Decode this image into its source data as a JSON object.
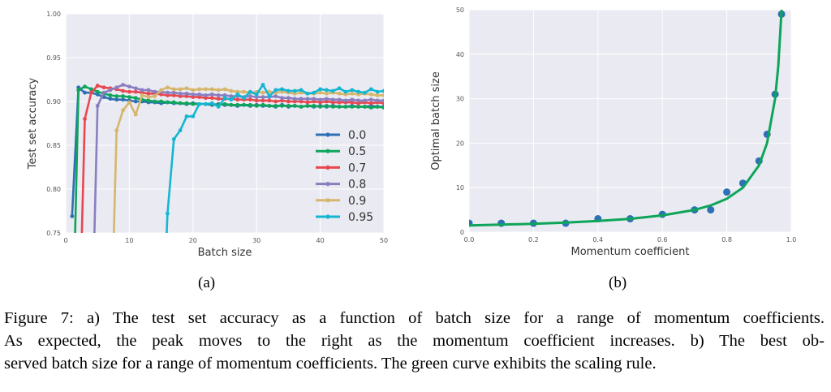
{
  "background_color": "#eaeaf2",
  "chart_data": [
    {
      "type": "line",
      "panel_label": "(a)",
      "xlabel": "Batch size",
      "ylabel": "Test set accuracy",
      "xlim": [
        0,
        50
      ],
      "ylim": [
        0.75,
        1.0
      ],
      "xticks": [
        "0",
        "10",
        "20",
        "30",
        "40",
        "50"
      ],
      "yticks": [
        "0.75",
        "0.80",
        "0.85",
        "0.90",
        "0.95",
        "1.00"
      ],
      "grid": true,
      "legend_position": "bottom-right",
      "x": [
        1,
        2,
        3,
        4,
        5,
        6,
        7,
        8,
        9,
        10,
        11,
        12,
        13,
        14,
        15,
        16,
        17,
        18,
        19,
        20,
        21,
        22,
        23,
        24,
        25,
        26,
        27,
        28,
        29,
        30,
        31,
        32,
        33,
        34,
        35,
        36,
        37,
        38,
        39,
        40,
        41,
        42,
        43,
        44,
        45,
        46,
        47,
        48,
        49,
        50
      ],
      "series": [
        {
          "name": "0.0",
          "color": "#2e6fb5",
          "values": [
            0.769,
            0.916,
            0.91,
            0.91,
            0.908,
            0.905,
            0.903,
            0.902,
            0.902,
            0.901,
            0.9,
            0.9,
            0.899,
            0.899,
            0.898,
            0.899,
            0.898,
            0.898,
            0.897,
            0.898,
            0.897,
            0.897,
            0.896,
            0.897,
            0.896,
            0.896,
            0.895,
            0.896,
            0.895,
            0.896,
            0.895,
            0.895,
            0.894,
            0.896,
            0.894,
            0.895,
            0.894,
            0.895,
            0.894,
            0.895,
            0.894,
            0.895,
            0.894,
            0.894,
            0.895,
            0.894,
            0.894,
            0.895,
            0.894,
            0.894
          ]
        },
        {
          "name": "0.5",
          "color": "#0ea55a",
          "values": [
            0.6,
            0.913,
            0.917,
            0.914,
            0.911,
            0.909,
            0.907,
            0.906,
            0.906,
            0.905,
            0.904,
            0.902,
            0.901,
            0.9,
            0.9,
            0.899,
            0.899,
            0.898,
            0.898,
            0.897,
            0.897,
            0.897,
            0.897,
            0.896,
            0.897,
            0.896,
            0.896,
            0.896,
            0.896,
            0.895,
            0.896,
            0.895,
            0.895,
            0.895,
            0.895,
            0.895,
            0.894,
            0.895,
            0.895,
            0.894,
            0.895,
            0.894,
            0.894,
            0.894,
            0.894,
            0.894,
            0.894,
            0.893,
            0.894,
            0.893
          ]
        },
        {
          "name": "0.7",
          "color": "#e8474f",
          "values": [
            null,
            0.6,
            0.88,
            0.91,
            0.918,
            0.916,
            0.915,
            0.914,
            0.912,
            0.911,
            0.911,
            0.91,
            0.909,
            0.909,
            0.908,
            0.907,
            0.907,
            0.906,
            0.906,
            0.905,
            0.905,
            0.904,
            0.904,
            0.903,
            0.903,
            0.903,
            0.902,
            0.902,
            0.902,
            0.901,
            0.901,
            0.901,
            0.9,
            0.901,
            0.9,
            0.9,
            0.9,
            0.899,
            0.9,
            0.899,
            0.9,
            0.899,
            0.899,
            0.899,
            0.899,
            0.898,
            0.899,
            0.898,
            0.899,
            0.898
          ]
        },
        {
          "name": "0.8",
          "color": "#8a7ec0",
          "values": [
            null,
            null,
            null,
            0.6,
            0.895,
            0.91,
            0.913,
            0.916,
            0.919,
            0.917,
            0.915,
            0.913,
            0.913,
            0.911,
            0.911,
            0.91,
            0.91,
            0.909,
            0.909,
            0.908,
            0.908,
            0.907,
            0.908,
            0.907,
            0.907,
            0.906,
            0.906,
            0.905,
            0.906,
            0.905,
            0.905,
            0.905,
            0.906,
            0.904,
            0.904,
            0.903,
            0.903,
            0.903,
            0.903,
            0.902,
            0.903,
            0.902,
            0.902,
            0.901,
            0.902,
            0.901,
            0.901,
            0.902,
            0.901,
            0.901
          ]
        },
        {
          "name": "0.9",
          "color": "#d6b66c",
          "values": [
            null,
            null,
            null,
            null,
            null,
            null,
            0.6,
            0.867,
            0.89,
            0.899,
            0.885,
            0.907,
            0.905,
            0.906,
            0.913,
            0.916,
            0.914,
            0.914,
            0.915,
            0.913,
            0.914,
            0.914,
            0.914,
            0.913,
            0.914,
            0.912,
            0.911,
            0.911,
            0.91,
            0.911,
            0.91,
            0.911,
            0.91,
            0.911,
            0.91,
            0.909,
            0.91,
            0.909,
            0.909,
            0.91,
            0.909,
            0.91,
            0.909,
            0.908,
            0.909,
            0.908,
            0.909,
            0.908,
            0.907,
            0.907
          ]
        },
        {
          "name": "0.95",
          "color": "#14b6d2",
          "values": [
            null,
            null,
            null,
            null,
            null,
            null,
            null,
            null,
            null,
            null,
            null,
            null,
            null,
            null,
            0.6,
            0.772,
            0.857,
            0.867,
            0.883,
            0.883,
            0.897,
            0.897,
            0.898,
            0.894,
            0.904,
            0.902,
            0.908,
            0.904,
            0.911,
            0.908,
            0.919,
            0.906,
            0.913,
            0.914,
            0.912,
            0.912,
            0.913,
            0.909,
            0.91,
            0.914,
            0.913,
            0.912,
            0.915,
            0.911,
            0.913,
            0.911,
            0.91,
            0.914,
            0.911,
            0.912
          ]
        }
      ]
    },
    {
      "type": "scatter",
      "panel_label": "(b)",
      "xlabel": "Momentum coefficient",
      "ylabel": "Optimal batch size",
      "xlim": [
        0.0,
        1.0
      ],
      "ylim": [
        0,
        50
      ],
      "xticks": [
        "0.0",
        "0.2",
        "0.4",
        "0.6",
        "0.8",
        "1.0"
      ],
      "yticks": [
        "0",
        "10",
        "20",
        "30",
        "40",
        "50"
      ],
      "grid": true,
      "points": {
        "color": "#2e6fb5",
        "x": [
          0.0,
          0.1,
          0.2,
          0.3,
          0.4,
          0.5,
          0.6,
          0.7,
          0.75,
          0.8,
          0.85,
          0.9,
          0.925,
          0.95,
          0.97
        ],
        "y": [
          2,
          2,
          2,
          2,
          3,
          3,
          4,
          5,
          5,
          9,
          11,
          16,
          22,
          31,
          49
        ]
      },
      "curve": {
        "color": "#0ea55a",
        "x": [
          0.0,
          0.1,
          0.2,
          0.3,
          0.4,
          0.5,
          0.6,
          0.7,
          0.75,
          0.8,
          0.85,
          0.9,
          0.925,
          0.95,
          0.96,
          0.97
        ],
        "y": [
          1.5,
          1.67,
          1.88,
          2.14,
          2.5,
          3.0,
          3.75,
          5.0,
          6.0,
          7.5,
          10.0,
          15.0,
          20.0,
          30.0,
          37.5,
          50.0
        ]
      }
    }
  ],
  "caption": {
    "lines": [
      "Figure 7: a) The test set accuracy as a function of batch size for a range of momentum coefficients.",
      "As expected, the peak moves to the right as the momentum coefficient increases.  b) The best ob-",
      "served batch size for a range of momentum coefficients. The green curve exhibits the scaling rule."
    ]
  }
}
